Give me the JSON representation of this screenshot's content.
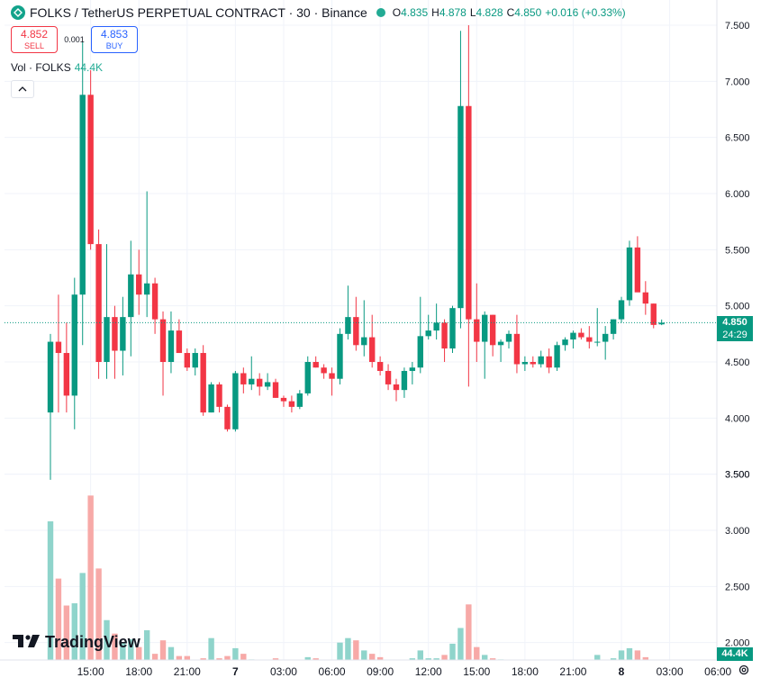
{
  "header": {
    "title": "FOLKS / TetherUS PERPETUAL CONTRACT · 30 · Binance",
    "ohlc": [
      {
        "k": "O",
        "v": "4.835"
      },
      {
        "k": "H",
        "v": "4.878"
      },
      {
        "k": "L",
        "v": "4.828"
      },
      {
        "k": "C",
        "v": "4.850"
      },
      {
        "k": "",
        "v": "+0.016 (+0.33%)"
      }
    ]
  },
  "trade": {
    "sell_price": "4.852",
    "sell_label": "SELL",
    "spread": "0.001",
    "buy_price": "4.853",
    "buy_label": "BUY"
  },
  "volume_legend": {
    "label": "Vol · FOLKS",
    "value": "44.4K"
  },
  "collapse_icon": "chevron-up-icon",
  "brand": "TradingView",
  "current_price": {
    "value": "4.850",
    "countdown": "24:29"
  },
  "volume_tag": "44.4K",
  "colors": {
    "up": "#089981",
    "down": "#f23645",
    "vol_up": "#8fd4cb",
    "vol_down": "#f7a9a7",
    "grid": "#f0f3fa"
  },
  "chart_data": {
    "type": "candlestick",
    "grid": true,
    "price_axis": {
      "ylim": [
        3.2,
        7.6
      ],
      "ticks": [
        "3.500",
        "4.000",
        "4.500",
        "5.000",
        "5.500",
        "6.000",
        "6.500",
        "7.000",
        "7.500"
      ]
    },
    "volume_axis": {
      "ylim": [
        1.35,
        7.6
      ]
    },
    "time_axis": {
      "ticks": [
        "15:00",
        "18:00",
        "21:00",
        "7",
        "03:00",
        "06:00",
        "09:00",
        "12:00",
        "15:00",
        "18:00",
        "21:00",
        "8",
        "03:00",
        "06:00"
      ]
    },
    "candles": [
      {
        "o": 4.05,
        "h": 4.75,
        "l": 3.45,
        "c": 4.68,
        "v": 3.08
      },
      {
        "o": 4.68,
        "h": 5.1,
        "l": 4.05,
        "c": 4.58,
        "v": 2.57
      },
      {
        "o": 4.58,
        "h": 4.85,
        "l": 4.05,
        "c": 4.2,
        "v": 2.33
      },
      {
        "o": 4.2,
        "h": 5.25,
        "l": 3.9,
        "c": 5.1,
        "v": 2.35
      },
      {
        "o": 5.1,
        "h": 7.35,
        "l": 4.65,
        "c": 6.88,
        "v": 2.62
      },
      {
        "o": 6.88,
        "h": 7.1,
        "l": 5.5,
        "c": 5.55,
        "v": 3.31
      },
      {
        "o": 5.55,
        "h": 5.68,
        "l": 4.35,
        "c": 4.5,
        "v": 2.66
      },
      {
        "o": 4.5,
        "h": 5.55,
        "l": 4.35,
        "c": 4.9,
        "v": 2.2
      },
      {
        "o": 4.9,
        "h": 5.0,
        "l": 4.35,
        "c": 4.6,
        "v": 2.08
      },
      {
        "o": 4.6,
        "h": 5.08,
        "l": 4.38,
        "c": 4.9,
        "v": 2.0
      },
      {
        "o": 4.9,
        "h": 5.58,
        "l": 4.55,
        "c": 5.28,
        "v": 2.03
      },
      {
        "o": 5.28,
        "h": 5.5,
        "l": 4.92,
        "c": 5.1,
        "v": 1.96
      },
      {
        "o": 5.1,
        "h": 6.02,
        "l": 4.9,
        "c": 5.2,
        "v": 2.11
      },
      {
        "o": 5.2,
        "h": 5.25,
        "l": 4.75,
        "c": 4.88,
        "v": 1.9
      },
      {
        "o": 4.88,
        "h": 4.95,
        "l": 4.2,
        "c": 4.5,
        "v": 2.02
      },
      {
        "o": 4.5,
        "h": 4.95,
        "l": 4.4,
        "c": 4.78,
        "v": 1.96
      },
      {
        "o": 4.78,
        "h": 4.88,
        "l": 4.58,
        "c": 4.58,
        "v": 1.88
      },
      {
        "o": 4.58,
        "h": 4.62,
        "l": 4.42,
        "c": 4.45,
        "v": 1.88
      },
      {
        "o": 4.45,
        "h": 4.62,
        "l": 4.38,
        "c": 4.58,
        "v": 1.84
      },
      {
        "o": 4.58,
        "h": 4.65,
        "l": 4.02,
        "c": 4.05,
        "v": 1.86
      },
      {
        "o": 4.05,
        "h": 4.32,
        "l": 4.05,
        "c": 4.3,
        "v": 2.04
      },
      {
        "o": 4.3,
        "h": 4.32,
        "l": 4.05,
        "c": 4.1,
        "v": 1.86
      },
      {
        "o": 4.1,
        "h": 4.12,
        "l": 3.88,
        "c": 3.9,
        "v": 1.88
      },
      {
        "o": 3.9,
        "h": 4.42,
        "l": 3.88,
        "c": 4.4,
        "v": 1.95
      },
      {
        "o": 4.4,
        "h": 4.45,
        "l": 4.22,
        "c": 4.3,
        "v": 1.9
      },
      {
        "o": 4.3,
        "h": 4.55,
        "l": 4.25,
        "c": 4.35,
        "v": 1.85
      },
      {
        "o": 4.35,
        "h": 4.4,
        "l": 4.2,
        "c": 4.28,
        "v": 1.84
      },
      {
        "o": 4.28,
        "h": 4.4,
        "l": 4.25,
        "c": 4.32,
        "v": 1.83
      },
      {
        "o": 4.32,
        "h": 4.35,
        "l": 4.18,
        "c": 4.18,
        "v": 1.86
      },
      {
        "o": 4.18,
        "h": 4.2,
        "l": 4.1,
        "c": 4.15,
        "v": 1.82
      },
      {
        "o": 4.15,
        "h": 4.2,
        "l": 4.05,
        "c": 4.1,
        "v": 1.82
      },
      {
        "o": 4.1,
        "h": 4.25,
        "l": 4.08,
        "c": 4.22,
        "v": 1.84
      },
      {
        "o": 4.22,
        "h": 4.55,
        "l": 4.2,
        "c": 4.5,
        "v": 1.87
      },
      {
        "o": 4.5,
        "h": 4.55,
        "l": 4.45,
        "c": 4.45,
        "v": 1.86
      },
      {
        "o": 4.45,
        "h": 4.48,
        "l": 4.35,
        "c": 4.4,
        "v": 1.84
      },
      {
        "o": 4.4,
        "h": 4.45,
        "l": 4.2,
        "c": 4.35,
        "v": 1.84
      },
      {
        "o": 4.35,
        "h": 4.8,
        "l": 4.3,
        "c": 4.75,
        "v": 2.0
      },
      {
        "o": 4.75,
        "h": 5.18,
        "l": 4.7,
        "c": 4.9,
        "v": 2.04
      },
      {
        "o": 4.9,
        "h": 5.08,
        "l": 4.6,
        "c": 4.65,
        "v": 2.02
      },
      {
        "o": 4.65,
        "h": 5.05,
        "l": 4.55,
        "c": 4.72,
        "v": 1.93
      },
      {
        "o": 4.72,
        "h": 4.92,
        "l": 4.45,
        "c": 4.5,
        "v": 1.9
      },
      {
        "o": 4.5,
        "h": 4.55,
        "l": 4.38,
        "c": 4.42,
        "v": 1.87
      },
      {
        "o": 4.42,
        "h": 4.48,
        "l": 4.25,
        "c": 4.3,
        "v": 1.84
      },
      {
        "o": 4.3,
        "h": 4.35,
        "l": 4.15,
        "c": 4.25,
        "v": 1.82
      },
      {
        "o": 4.25,
        "h": 4.45,
        "l": 4.18,
        "c": 4.42,
        "v": 1.84
      },
      {
        "o": 4.42,
        "h": 4.5,
        "l": 4.3,
        "c": 4.45,
        "v": 1.86
      },
      {
        "o": 4.45,
        "h": 5.08,
        "l": 4.4,
        "c": 4.73,
        "v": 1.93
      },
      {
        "o": 4.73,
        "h": 4.92,
        "l": 4.7,
        "c": 4.78,
        "v": 1.86
      },
      {
        "o": 4.78,
        "h": 5.02,
        "l": 4.7,
        "c": 4.85,
        "v": 1.86
      },
      {
        "o": 4.85,
        "h": 4.88,
        "l": 4.5,
        "c": 4.62,
        "v": 1.89
      },
      {
        "o": 4.62,
        "h": 5.0,
        "l": 4.58,
        "c": 4.98,
        "v": 1.99
      },
      {
        "o": 4.98,
        "h": 7.45,
        "l": 4.8,
        "c": 6.78,
        "v": 2.13
      },
      {
        "o": 6.78,
        "h": 7.5,
        "l": 4.28,
        "c": 4.88,
        "v": 2.34
      },
      {
        "o": 4.88,
        "h": 5.2,
        "l": 4.5,
        "c": 4.68,
        "v": 1.96
      },
      {
        "o": 4.68,
        "h": 4.95,
        "l": 4.35,
        "c": 4.92,
        "v": 1.89
      },
      {
        "o": 4.92,
        "h": 4.92,
        "l": 4.55,
        "c": 4.65,
        "v": 1.86
      },
      {
        "o": 4.65,
        "h": 4.7,
        "l": 4.5,
        "c": 4.68,
        "v": 1.85
      },
      {
        "o": 4.68,
        "h": 4.78,
        "l": 4.62,
        "c": 4.75,
        "v": 1.83
      },
      {
        "o": 4.75,
        "h": 4.92,
        "l": 4.4,
        "c": 4.48,
        "v": 1.84
      },
      {
        "o": 4.48,
        "h": 4.55,
        "l": 4.42,
        "c": 4.5,
        "v": 1.82
      },
      {
        "o": 4.5,
        "h": 4.55,
        "l": 4.45,
        "c": 4.48,
        "v": 1.81
      },
      {
        "o": 4.48,
        "h": 4.6,
        "l": 4.45,
        "c": 4.55,
        "v": 1.82
      },
      {
        "o": 4.55,
        "h": 4.62,
        "l": 4.4,
        "c": 4.45,
        "v": 1.81
      },
      {
        "o": 4.45,
        "h": 4.68,
        "l": 4.42,
        "c": 4.65,
        "v": 1.82
      },
      {
        "o": 4.65,
        "h": 4.72,
        "l": 4.6,
        "c": 4.7,
        "v": 1.82
      },
      {
        "o": 4.7,
        "h": 4.78,
        "l": 4.62,
        "c": 4.76,
        "v": 1.81
      },
      {
        "o": 4.76,
        "h": 4.8,
        "l": 4.7,
        "c": 4.72,
        "v": 1.81
      },
      {
        "o": 4.72,
        "h": 4.82,
        "l": 4.62,
        "c": 4.68,
        "v": 1.82
      },
      {
        "o": 4.68,
        "h": 4.98,
        "l": 4.64,
        "c": 4.68,
        "v": 1.89
      },
      {
        "o": 4.68,
        "h": 4.82,
        "l": 4.52,
        "c": 4.75,
        "v": 1.84
      },
      {
        "o": 4.75,
        "h": 4.88,
        "l": 4.7,
        "c": 4.88,
        "v": 1.86
      },
      {
        "o": 4.88,
        "h": 5.08,
        "l": 4.85,
        "c": 5.05,
        "v": 1.93
      },
      {
        "o": 5.05,
        "h": 5.58,
        "l": 5.0,
        "c": 5.52,
        "v": 1.95
      },
      {
        "o": 5.52,
        "h": 5.62,
        "l": 5.15,
        "c": 5.12,
        "v": 1.93
      },
      {
        "o": 5.12,
        "h": 5.22,
        "l": 4.92,
        "c": 5.02,
        "v": 1.87
      },
      {
        "o": 5.02,
        "h": 5.02,
        "l": 4.8,
        "c": 4.83,
        "v": 1.82
      },
      {
        "o": 4.835,
        "h": 4.878,
        "l": 4.828,
        "c": 4.85,
        "v": 1.77
      }
    ]
  }
}
